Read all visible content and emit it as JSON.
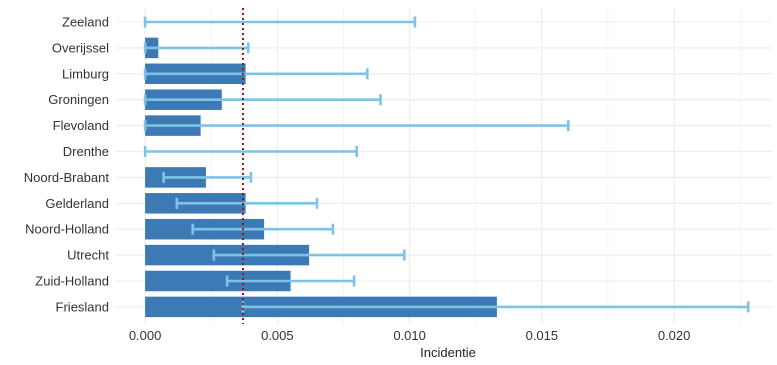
{
  "chart_data": {
    "type": "bar",
    "orientation": "horizontal",
    "xlabel": "Incidentie",
    "ylabel": "",
    "xlim": [
      -0.0011,
      0.0237
    ],
    "x_ticks": [
      "0.000",
      "0.005",
      "0.010",
      "0.015",
      "0.020"
    ],
    "x_tick_values": [
      0,
      0.005,
      0.01,
      0.015,
      0.02
    ],
    "grid": true,
    "reference_line": {
      "x": 0.0037,
      "style": "dotted",
      "color": "#8B1A1A"
    },
    "categories": [
      "Zeeland",
      "Overijssel",
      "Limburg",
      "Groningen",
      "Flevoland",
      "Drenthe",
      "Noord-Brabant",
      "Gelderland",
      "Noord-Holland",
      "Utrecht",
      "Zuid-Holland",
      "Friesland"
    ],
    "values": [
      0.0,
      0.0005,
      0.0038,
      0.0029,
      0.0021,
      0.0,
      0.0023,
      0.0038,
      0.0045,
      0.0062,
      0.0055,
      0.0133
    ],
    "error_lower": [
      0.0,
      0.0,
      0.0,
      0.0,
      0.0,
      0.0,
      0.0007,
      0.0012,
      0.0018,
      0.0026,
      0.0031,
      0.0037
    ],
    "error_upper": [
      0.0102,
      0.0039,
      0.0084,
      0.0089,
      0.016,
      0.008,
      0.004,
      0.0065,
      0.0071,
      0.0098,
      0.0079,
      0.0228
    ],
    "colors": {
      "bar": "#3d7ab5",
      "error": "#7ec3e6",
      "grid": "#ececec",
      "reference": "#8B1A1A"
    }
  }
}
